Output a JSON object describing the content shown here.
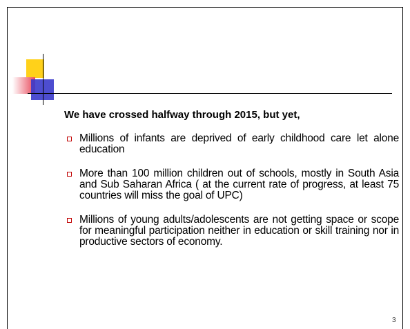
{
  "heading": "We have crossed halfway through 2015, but yet,",
  "bullets": [
    "Millions of infants are deprived of early childhood care let alone education",
    "More than 100 million children out of schools, mostly in South Asia and Sub Saharan Africa ( at the current rate of progress, at least 75 countries will miss the goal of UPC)",
    "Millions of young adults/adolescents are not getting space or scope for meaningful participation neither in education or skill training  nor in productive sectors of economy."
  ],
  "page_number": "3"
}
